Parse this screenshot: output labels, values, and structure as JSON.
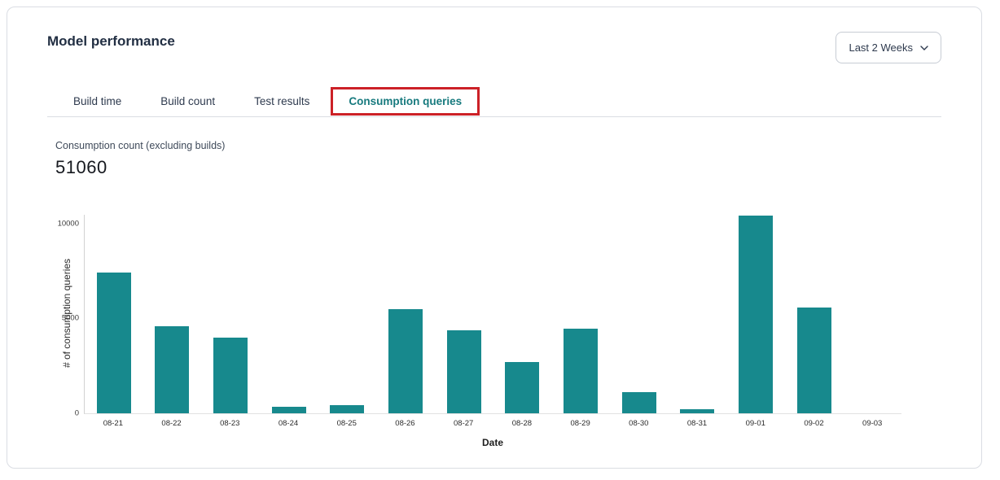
{
  "header": {
    "title": "Model performance",
    "time_range_selector": {
      "value": "Last 2 Weeks"
    }
  },
  "tabs": [
    {
      "label": "Build time",
      "active": false
    },
    {
      "label": "Build count",
      "active": false
    },
    {
      "label": "Test results",
      "active": false
    },
    {
      "label": "Consumption queries",
      "active": true,
      "annotated": true
    }
  ],
  "metric": {
    "label": "Consumption count (excluding builds)",
    "value": "51060"
  },
  "chart_data": {
    "type": "bar",
    "title": "",
    "categories": [
      "08-21",
      "08-22",
      "08-23",
      "08-24",
      "08-25",
      "08-26",
      "08-27",
      "08-28",
      "08-29",
      "08-30",
      "08-31",
      "09-01",
      "09-02",
      "09-03"
    ],
    "values": [
      7400,
      4600,
      4000,
      350,
      450,
      5500,
      4350,
      2700,
      4450,
      1100,
      210,
      10400,
      5550,
      0
    ],
    "xlabel": "Date",
    "ylabel": "# of consumption queries",
    "ylim": [
      0,
      10450
    ],
    "yticks": [
      0,
      5000,
      10000
    ],
    "grid": false,
    "legend": "none",
    "bar_color": "#17898d"
  },
  "colors": {
    "accent_teal": "#17898d",
    "active_tab_teal": "#177a7e",
    "annotation_red": "#cc2127",
    "text_primary": "#222f43",
    "card_border": "#dadde3"
  }
}
